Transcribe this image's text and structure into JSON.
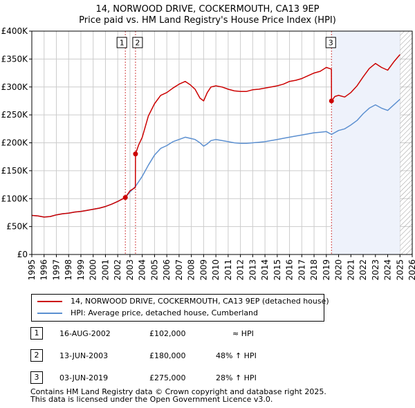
{
  "title_line1": "14, NORWOOD DRIVE, COCKERMOUTH, CA13 9EP",
  "title_line2": "Price paid vs. HM Land Registry's House Price Index (HPI)",
  "colors": {
    "property": "#cc0000",
    "hpi": "#5b8fd0",
    "shade": "#eef2fb",
    "grid": "#cccccc",
    "vline": "#d04040",
    "hatch": "#999999"
  },
  "legend": {
    "property_label": "14, NORWOOD DRIVE, COCKERMOUTH, CA13 9EP (detached house)",
    "hpi_label": "HPI: Average price, detached house, Cumberland"
  },
  "sales": [
    {
      "num": "1",
      "date": "16-AUG-2002",
      "price": "£102,000",
      "hpi": "≈ HPI"
    },
    {
      "num": "2",
      "date": "13-JUN-2003",
      "price": "£180,000",
      "hpi": "48% ↑ HPI"
    },
    {
      "num": "3",
      "date": "03-JUN-2019",
      "price": "£275,000",
      "hpi": "28% ↑ HPI"
    }
  ],
  "footer": {
    "line1": "Contains HM Land Registry data © Crown copyright and database right 2025.",
    "line2": "This data is licensed under the Open Government Licence v3.0."
  },
  "chart_data": {
    "type": "line",
    "title": "14, NORWOOD DRIVE, COCKERMOUTH, CA13 9EP — Price paid vs. HM Land Registry's House Price Index (HPI)",
    "xlabel": "",
    "ylabel": "",
    "xlim": [
      1995,
      2026
    ],
    "ylim": [
      0,
      400000
    ],
    "x_ticks": [
      "1995",
      "1996",
      "1997",
      "1998",
      "1999",
      "2000",
      "2001",
      "2002",
      "2003",
      "2004",
      "2005",
      "2006",
      "2007",
      "2008",
      "2009",
      "2010",
      "2011",
      "2012",
      "2013",
      "2014",
      "2015",
      "2016",
      "2017",
      "2018",
      "2019",
      "2020",
      "2021",
      "2022",
      "2023",
      "2024",
      "2025",
      "2026"
    ],
    "y_ticks": [
      {
        "value": 0,
        "label": "£0"
      },
      {
        "value": 50000,
        "label": "£50K"
      },
      {
        "value": 100000,
        "label": "£100K"
      },
      {
        "value": 150000,
        "label": "£150K"
      },
      {
        "value": 200000,
        "label": "£200K"
      },
      {
        "value": 250000,
        "label": "£250K"
      },
      {
        "value": 300000,
        "label": "£300K"
      },
      {
        "value": 350000,
        "label": "£350K"
      },
      {
        "value": 400000,
        "label": "£400K"
      }
    ],
    "shaded_from": 2019.42,
    "future_from": 2025.0,
    "sale_markers": [
      {
        "label": "1",
        "x": 2002.62,
        "y": 102000
      },
      {
        "label": "2",
        "x": 2003.45,
        "y": 180000
      },
      {
        "label": "3",
        "x": 2019.42,
        "y": 275000
      }
    ],
    "series": [
      {
        "name": "14, NORWOOD DRIVE, COCKERMOUTH, CA13 9EP (detached house)",
        "x": [
          1995,
          1995.5,
          1996,
          1996.5,
          1997,
          1997.5,
          1998,
          1998.5,
          1999,
          1999.5,
          2000,
          2000.5,
          2001,
          2001.5,
          2002,
          2002.62,
          2003,
          2003.44,
          2003.45,
          2003.7,
          2004,
          2004.5,
          2005,
          2005.5,
          2006,
          2006.5,
          2007,
          2007.5,
          2007.9,
          2008.3,
          2008.7,
          2009,
          2009.3,
          2009.6,
          2010,
          2010.5,
          2011,
          2011.5,
          2012,
          2012.5,
          2013,
          2013.5,
          2014,
          2014.5,
          2015,
          2015.5,
          2016,
          2016.5,
          2017,
          2017.5,
          2018,
          2018.5,
          2019,
          2019.41,
          2019.42,
          2019.7,
          2020,
          2020.5,
          2021,
          2021.5,
          2022,
          2022.5,
          2023,
          2023.5,
          2024,
          2024.5,
          2025
        ],
        "values": [
          70000,
          69000,
          67000,
          68000,
          71000,
          73000,
          74000,
          76000,
          77000,
          79000,
          81000,
          83000,
          86000,
          90000,
          95000,
          102000,
          114000,
          120000,
          180000,
          196000,
          210000,
          248000,
          270000,
          285000,
          290000,
          298000,
          305000,
          310000,
          304000,
          296000,
          280000,
          275000,
          290000,
          300000,
          302000,
          300000,
          296000,
          293000,
          292000,
          292000,
          295000,
          296000,
          298000,
          300000,
          302000,
          305000,
          310000,
          312000,
          315000,
          320000,
          325000,
          328000,
          335000,
          332000,
          275000,
          283000,
          285000,
          282000,
          290000,
          302000,
          318000,
          333000,
          342000,
          335000,
          330000,
          345000,
          358000
        ]
      },
      {
        "name": "HPI: Average price, detached house, Cumberland",
        "x": [
          1995,
          1995.5,
          1996,
          1996.5,
          1997,
          1997.5,
          1998,
          1998.5,
          1999,
          1999.5,
          2000,
          2000.5,
          2001,
          2001.5,
          2002,
          2002.62,
          2003,
          2003.45,
          2004,
          2004.5,
          2005,
          2005.5,
          2006,
          2006.5,
          2007,
          2007.5,
          2007.9,
          2008.3,
          2008.7,
          2009,
          2009.3,
          2009.6,
          2010,
          2010.5,
          2011,
          2011.5,
          2012,
          2012.5,
          2013,
          2013.5,
          2014,
          2014.5,
          2015,
          2015.5,
          2016,
          2016.5,
          2017,
          2017.5,
          2018,
          2018.5,
          2019,
          2019.42,
          2020,
          2020.5,
          2021,
          2021.5,
          2022,
          2022.5,
          2023,
          2023.5,
          2024,
          2024.5,
          2025
        ],
        "values": [
          70000,
          69000,
          67000,
          68000,
          71000,
          73000,
          74000,
          76000,
          77000,
          79000,
          81000,
          83000,
          86000,
          90000,
          95000,
          102000,
          112000,
          122000,
          140000,
          160000,
          178000,
          190000,
          195000,
          202000,
          206000,
          210000,
          208000,
          206000,
          200000,
          194000,
          198000,
          204000,
          206000,
          204000,
          202000,
          200000,
          199000,
          199000,
          200000,
          201000,
          202000,
          204000,
          206000,
          208000,
          210000,
          212000,
          214000,
          216000,
          218000,
          219000,
          220000,
          215000,
          222000,
          225000,
          232000,
          240000,
          252000,
          262000,
          268000,
          262000,
          258000,
          268000,
          278000
        ]
      }
    ]
  }
}
